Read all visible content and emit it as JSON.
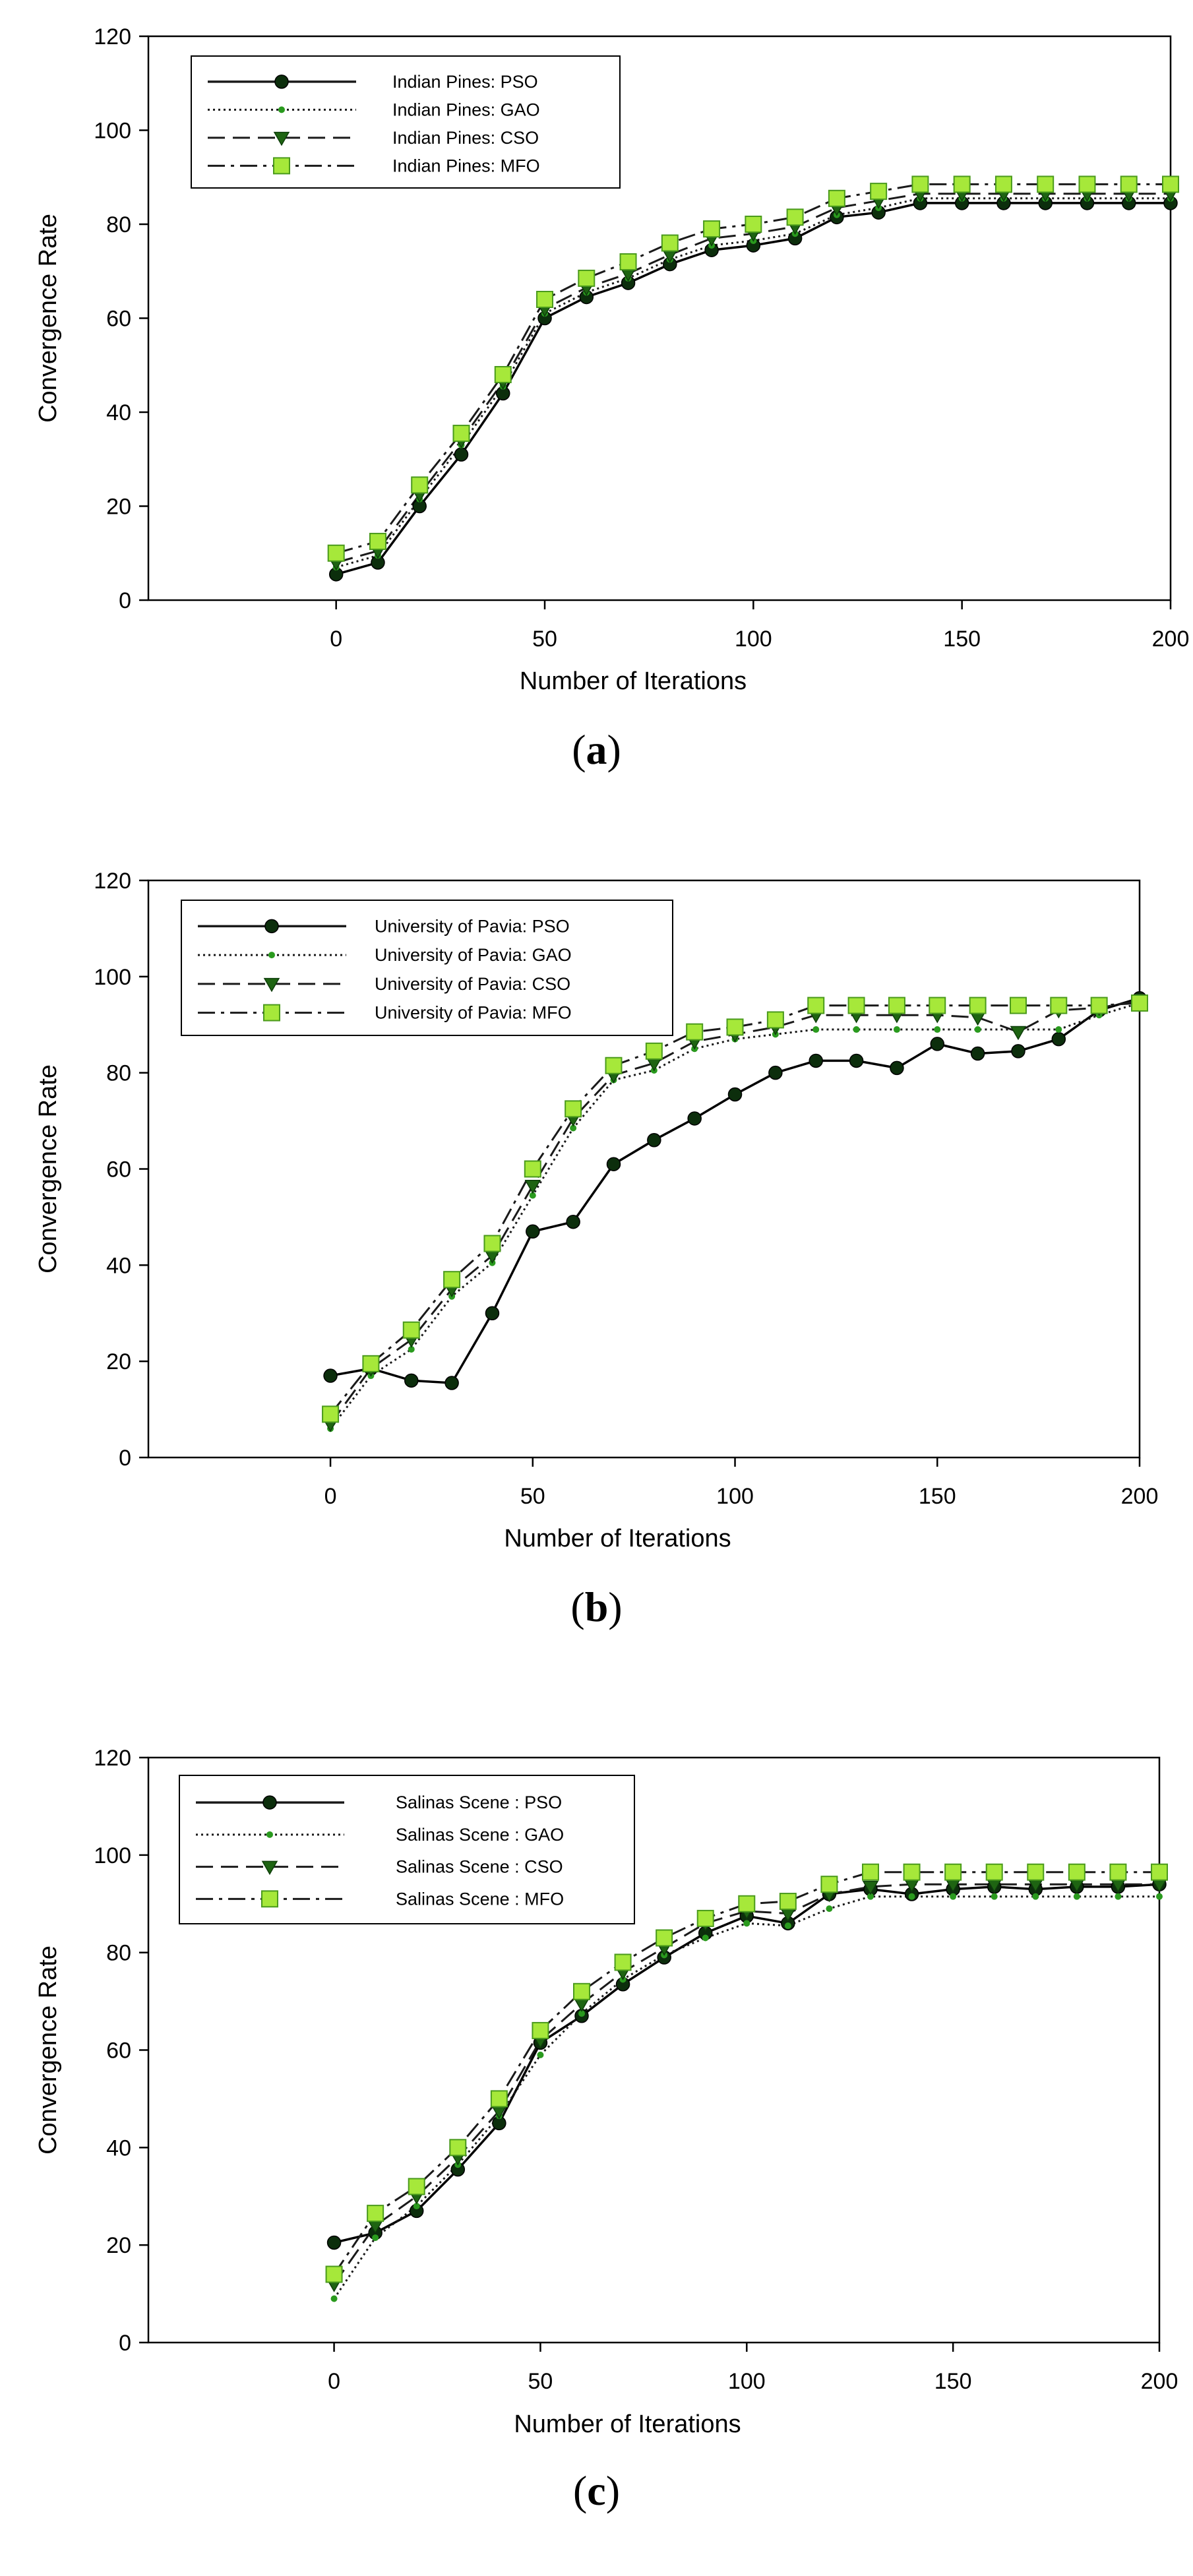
{
  "colors": {
    "pso": "#0c2e0c",
    "gao": "#2a9a1e",
    "cso": "#1e6412",
    "mfo": "#a6e83a",
    "mfo_edge": "#4a9a1c"
  },
  "chart_data": [
    {
      "type": "line",
      "caption": "(a)",
      "caption_letter": "a",
      "xlabel": "Number of Iterations",
      "ylabel": "Convergence Rate",
      "xlim": [
        -45,
        200
      ],
      "ylim": [
        0,
        120
      ],
      "xticks": [
        0,
        50,
        100,
        150,
        200
      ],
      "yticks": [
        0,
        20,
        40,
        60,
        80,
        100,
        120
      ],
      "legend_position": "top-left",
      "x": [
        0,
        10,
        20,
        30,
        40,
        50,
        60,
        70,
        80,
        90,
        100,
        110,
        120,
        130,
        140,
        150,
        160,
        170,
        180,
        190,
        200
      ],
      "series": [
        {
          "key": "pso",
          "name": "Indian Pines: PSO",
          "values": [
            5.5,
            8,
            20,
            31,
            44,
            60,
            64.5,
            67.5,
            71.5,
            74.5,
            75.5,
            77,
            81.5,
            82.5,
            84.5,
            84.5,
            84.5,
            84.5,
            84.5,
            84.5,
            84.5
          ]
        },
        {
          "key": "gao",
          "name": "Indian Pines: GAO",
          "values": [
            7,
            9.5,
            21.5,
            33,
            45.5,
            61,
            65.5,
            68.5,
            72.5,
            75.5,
            76.5,
            78,
            82,
            83.5,
            85.5,
            85.5,
            85.5,
            85.5,
            85.5,
            85.5,
            85.5
          ]
        },
        {
          "key": "cso",
          "name": "Indian Pines: CSO",
          "values": [
            8,
            10.5,
            22.5,
            34,
            46.5,
            62,
            66.5,
            69.5,
            73.5,
            77,
            78,
            79.5,
            83.5,
            85,
            86.5,
            86.5,
            86.5,
            86.5,
            86.5,
            86.5,
            86.5
          ]
        },
        {
          "key": "mfo",
          "name": "Indian Pines: MFO",
          "values": [
            10,
            12.5,
            24.5,
            35.5,
            48,
            64,
            68.5,
            72,
            76,
            79,
            80,
            81.5,
            85.5,
            87,
            88.5,
            88.5,
            88.5,
            88.5,
            88.5,
            88.5,
            88.5
          ]
        }
      ]
    },
    {
      "type": "line",
      "caption": "(b)",
      "caption_letter": "b",
      "xlabel": "Number of Iterations",
      "ylabel": "Convergence Rate",
      "xlim": [
        -45,
        200
      ],
      "ylim": [
        0,
        120
      ],
      "xticks": [
        0,
        50,
        100,
        150,
        200
      ],
      "yticks": [
        0,
        20,
        40,
        60,
        80,
        100,
        120
      ],
      "legend_position": "top-left",
      "x": [
        0,
        10,
        20,
        30,
        40,
        50,
        60,
        70,
        80,
        90,
        100,
        110,
        120,
        130,
        140,
        150,
        160,
        170,
        180,
        190,
        200
      ],
      "series": [
        {
          "key": "pso",
          "name": "University of Pavia: PSO",
          "values": [
            17,
            18.5,
            16,
            15.5,
            30,
            47,
            49,
            61,
            66,
            70.5,
            75.5,
            80,
            82.5,
            82.5,
            81,
            86,
            84,
            84.5,
            87,
            93,
            95.5
          ]
        },
        {
          "key": "gao",
          "name": "University of Pavia: GAO",
          "values": [
            6,
            17,
            22.5,
            33.5,
            40.5,
            54.5,
            68.5,
            78.5,
            80.5,
            85,
            87,
            88,
            89,
            89,
            89,
            89,
            89,
            89,
            89,
            92,
            94.5
          ]
        },
        {
          "key": "cso",
          "name": "University of Pavia: CSO",
          "values": [
            7,
            18.5,
            24.5,
            35,
            42,
            56.5,
            70.5,
            79.5,
            82,
            86.5,
            88,
            89.5,
            92,
            92,
            92,
            92,
            91.5,
            88.5,
            93,
            93.5,
            95
          ]
        },
        {
          "key": "mfo",
          "name": "University of Pavia: MFO",
          "values": [
            9,
            19.5,
            26.5,
            37,
            44.5,
            60,
            72.5,
            81.5,
            84.5,
            88.5,
            89.5,
            91,
            94,
            94,
            94,
            94,
            94,
            94,
            94,
            94,
            94.5
          ]
        }
      ]
    },
    {
      "type": "line",
      "caption": "(c)",
      "caption_letter": "c",
      "xlabel": "Number of Iterations",
      "ylabel": "Convergence Rate",
      "xlim": [
        -45,
        200
      ],
      "ylim": [
        0,
        120
      ],
      "xticks": [
        0,
        50,
        100,
        150,
        200
      ],
      "yticks": [
        0,
        20,
        40,
        60,
        80,
        100,
        120
      ],
      "legend_position": "top-left",
      "x": [
        0,
        10,
        20,
        30,
        40,
        50,
        60,
        70,
        80,
        90,
        100,
        110,
        120,
        130,
        140,
        150,
        160,
        170,
        180,
        190,
        200
      ],
      "series": [
        {
          "key": "pso",
          "name": "Salinas Scene : PSO",
          "values": [
            20.5,
            22.5,
            27,
            35.5,
            45,
            61.5,
            67,
            73.5,
            79,
            84,
            87.5,
            86,
            92,
            93,
            92,
            93,
            93.5,
            93,
            93.5,
            93.5,
            94
          ]
        },
        {
          "key": "gao",
          "name": "Salinas Scene : GAO",
          "values": [
            9,
            21.5,
            28,
            36.5,
            46.5,
            59,
            67.5,
            74.5,
            79.5,
            83,
            86,
            85.5,
            89,
            91.5,
            91.5,
            91.5,
            91.5,
            91.5,
            91.5,
            91.5,
            91.5
          ]
        },
        {
          "key": "cso",
          "name": "Salinas Scene : CSO",
          "values": [
            12,
            24,
            30,
            38,
            47.5,
            62,
            69.5,
            76,
            81,
            86,
            88.5,
            88,
            92,
            93.5,
            94,
            94,
            94,
            94,
            94,
            94,
            94
          ]
        },
        {
          "key": "mfo",
          "name": "Salinas Scene : MFO",
          "values": [
            14,
            26.5,
            32,
            40,
            50,
            64,
            72,
            78,
            83,
            87,
            90,
            90.5,
            94,
            96.5,
            96.5,
            96.5,
            96.5,
            96.5,
            96.5,
            96.5,
            96.5
          ]
        }
      ]
    }
  ]
}
